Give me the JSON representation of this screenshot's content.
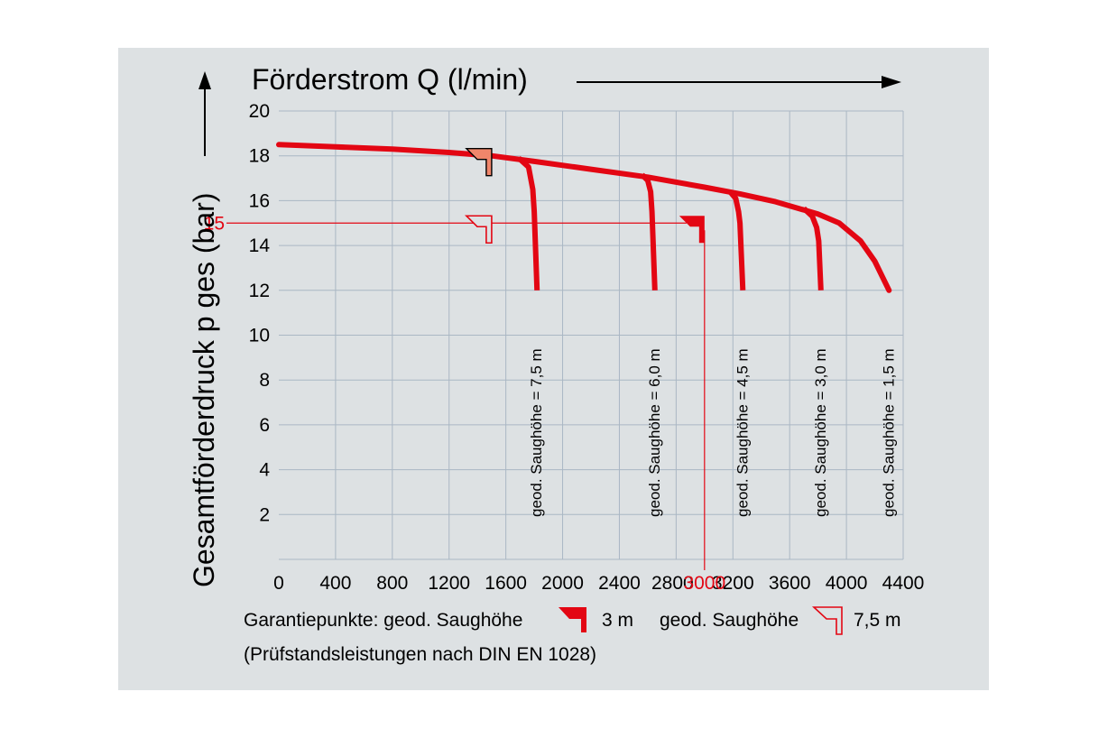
{
  "chart_data": {
    "type": "line",
    "title": "",
    "xlabel": "Förderstrom Q (l/min)",
    "ylabel": "Gesamtförderdruck p ges (bar)",
    "xlim": [
      0,
      4400
    ],
    "ylim": [
      0,
      20
    ],
    "xticks": [
      "0",
      "400",
      "800",
      "1200",
      "1600",
      "2000",
      "2400",
      "2800",
      "3200",
      "3600",
      "4000",
      "4400"
    ],
    "yticks": [
      "2",
      "4",
      "6",
      "8",
      "10",
      "12",
      "14",
      "16",
      "18",
      "20"
    ],
    "grid": true,
    "envelope": {
      "x": [
        0,
        400,
        800,
        1200,
        1500,
        1800,
        2200,
        2600,
        3000,
        3250,
        3500,
        3800,
        3950,
        4100,
        4200,
        4300
      ],
      "y": [
        18.5,
        18.4,
        18.3,
        18.15,
        18.0,
        17.75,
        17.4,
        17.05,
        16.6,
        16.3,
        15.95,
        15.4,
        15.0,
        14.2,
        13.3,
        12.0
      ]
    },
    "series": [
      {
        "name": "geod. Saughöhe = 7,5 m",
        "x": [
          1690,
          1760,
          1790,
          1800,
          1820
        ],
        "y": [
          17.9,
          17.5,
          16.5,
          15.5,
          12.0
        ]
      },
      {
        "name": "geod. Saughöhe = 6,0 m",
        "x": [
          2560,
          2600,
          2620,
          2630,
          2650
        ],
        "y": [
          17.15,
          16.9,
          16.4,
          15.5,
          12.0
        ]
      },
      {
        "name": "geod. Saughöhe = 4,5 m",
        "x": [
          3180,
          3220,
          3240,
          3250,
          3270
        ],
        "y": [
          16.4,
          16.1,
          15.5,
          15.0,
          12.0
        ]
      },
      {
        "name": "geod. Saughöhe = 3,0 m",
        "x": [
          3700,
          3760,
          3790,
          3805,
          3820
        ],
        "y": [
          15.65,
          15.3,
          14.8,
          14.2,
          12.0
        ]
      }
    ],
    "guarantee_points": [
      {
        "label": "3 m",
        "x": 3000,
        "y": 15,
        "style": "filled"
      },
      {
        "label": "7,5 m",
        "x": 1500,
        "y": 15,
        "style": "outline"
      },
      {
        "label": "",
        "x": 1500,
        "y": 18,
        "style": "shaded"
      }
    ],
    "reference_lines": {
      "y": "15",
      "x": "3000"
    },
    "legend_text": "Garantiepunkte: geod. Saughöhe",
    "legend_mid_text": "geod. Saughöhe",
    "legend_first_value": "3 m",
    "legend_second_value": "7,5 m",
    "footnote": "(Prüfstandsleistungen nach DIN EN 1028)",
    "colors": {
      "curve": "#e30613",
      "grid": "#aab7c4",
      "background": "#dde1e3",
      "shade": "#f0866b"
    }
  }
}
